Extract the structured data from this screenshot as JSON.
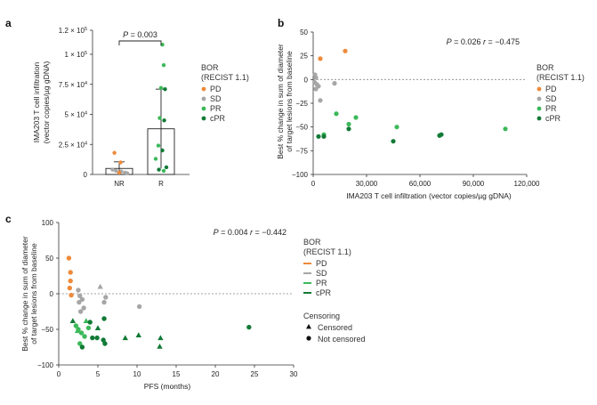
{
  "colors": {
    "PD": "#ee8a3a",
    "SD": "#a6a6a6",
    "PR": "#3cb95a",
    "cPR": "#127a36"
  },
  "chart_data": [
    {
      "panel": "a",
      "type": "bar",
      "categories": [
        "NR",
        "R"
      ],
      "bar_means": [
        5000,
        38000
      ],
      "error_sd": [
        5500,
        33000
      ],
      "ylabel_line1": "IMA203 T cell infiltration",
      "ylabel_line2": "(vector copies/µg gDNA)",
      "ylim": [
        0,
        120000
      ],
      "y_ticks": [
        0,
        25000,
        50000,
        75000,
        100000,
        120000
      ],
      "y_tick_labels": [
        {
          "mant": "0",
          "exp": ""
        },
        {
          "mant": "2.5 × 10",
          "exp": "4"
        },
        {
          "mant": "5 × 10",
          "exp": "4"
        },
        {
          "mant": "7.5 × 10",
          "exp": "4"
        },
        {
          "mant": "1 × 10",
          "exp": "5"
        },
        {
          "mant": "1.2 × 10",
          "exp": "5"
        }
      ],
      "stat": "P = 0.003",
      "legend_title": [
        "BOR",
        "(RECIST 1.1)"
      ],
      "legend": [
        "PD",
        "SD",
        "PR",
        "cPR"
      ],
      "points": [
        {
          "g": "NR",
          "x_off": -0.18,
          "y": 18000,
          "bor": "PD"
        },
        {
          "g": "NR",
          "x_off": 0.05,
          "y": 10000,
          "bor": "PD"
        },
        {
          "g": "NR",
          "x_off": -0.25,
          "y": 4000,
          "bor": "SD"
        },
        {
          "g": "NR",
          "x_off": -0.12,
          "y": 3000,
          "bor": "SD"
        },
        {
          "g": "NR",
          "x_off": 0.08,
          "y": 2500,
          "bor": "SD"
        },
        {
          "g": "NR",
          "x_off": 0.22,
          "y": 1500,
          "bor": "SD"
        },
        {
          "g": "NR",
          "x_off": 0.3,
          "y": 1000,
          "bor": "SD"
        },
        {
          "g": "NR",
          "x_off": 0.0,
          "y": 1500,
          "bor": "PD"
        },
        {
          "g": "R",
          "x_off": 0.05,
          "y": 108000,
          "bor": "PR"
        },
        {
          "g": "R",
          "x_off": 0.1,
          "y": 91000,
          "bor": "PR"
        },
        {
          "g": "R",
          "x_off": 0.0,
          "y": 72000,
          "bor": "PR"
        },
        {
          "g": "R",
          "x_off": 0.15,
          "y": 71000,
          "bor": "cPR"
        },
        {
          "g": "R",
          "x_off": -0.05,
          "y": 47000,
          "bor": "PR"
        },
        {
          "g": "R",
          "x_off": 0.12,
          "y": 45000,
          "bor": "cPR"
        },
        {
          "g": "R",
          "x_off": -0.1,
          "y": 24000,
          "bor": "PR"
        },
        {
          "g": "R",
          "x_off": 0.05,
          "y": 20000,
          "bor": "cPR"
        },
        {
          "g": "R",
          "x_off": -0.2,
          "y": 13000,
          "bor": "PR"
        },
        {
          "g": "R",
          "x_off": 0.2,
          "y": 6000,
          "bor": "cPR"
        },
        {
          "g": "R",
          "x_off": -0.08,
          "y": 4000,
          "bor": "cPR"
        },
        {
          "g": "R",
          "x_off": 0.1,
          "y": 3000,
          "bor": "PR"
        }
      ]
    },
    {
      "panel": "b",
      "type": "scatter",
      "xlabel": "IMA203 T cell infiltration (vector copies/µg gDNA)",
      "ylabel_line1": "Best % change in sum of diameter",
      "ylabel_line2": "of target lesions from baseline",
      "xlim": [
        0,
        120000
      ],
      "ylim": [
        -100,
        50
      ],
      "x_ticks": [
        0,
        30000,
        60000,
        90000,
        120000
      ],
      "x_tick_labels": [
        "0",
        "30,000",
        "60,000",
        "90,000",
        "120,000"
      ],
      "y_ticks": [
        -100,
        -75,
        -50,
        -25,
        0,
        25,
        50
      ],
      "stat": "P = 0.026  r = −0.475",
      "legend_title": [
        "BOR",
        "(RECIST 1.1)"
      ],
      "legend": [
        "PD",
        "SD",
        "PR",
        "cPR"
      ],
      "points": [
        {
          "x": 4000,
          "y": 22,
          "bor": "PD"
        },
        {
          "x": 18000,
          "y": 30,
          "bor": "PD"
        },
        {
          "x": 1000,
          "y": 5,
          "bor": "SD"
        },
        {
          "x": 1500,
          "y": 2,
          "bor": "SD"
        },
        {
          "x": 800,
          "y": -3,
          "bor": "SD"
        },
        {
          "x": 2000,
          "y": -5,
          "bor": "SD"
        },
        {
          "x": 3000,
          "y": -7,
          "bor": "SD"
        },
        {
          "x": 12000,
          "y": -4,
          "bor": "SD"
        },
        {
          "x": 4000,
          "y": -22,
          "bor": "SD"
        },
        {
          "x": 1500,
          "y": -10,
          "bor": "SD"
        },
        {
          "x": 108000,
          "y": -52,
          "bor": "PR"
        },
        {
          "x": 47000,
          "y": -50,
          "bor": "PR"
        },
        {
          "x": 24000,
          "y": -40,
          "bor": "PR"
        },
        {
          "x": 13000,
          "y": -36,
          "bor": "PR"
        },
        {
          "x": 20000,
          "y": -47,
          "bor": "PR"
        },
        {
          "x": 6000,
          "y": -58,
          "bor": "PR"
        },
        {
          "x": 72000,
          "y": -58,
          "bor": "cPR"
        },
        {
          "x": 71000,
          "y": -59,
          "bor": "cPR"
        },
        {
          "x": 45000,
          "y": -65,
          "bor": "cPR"
        },
        {
          "x": 20000,
          "y": -52,
          "bor": "cPR"
        },
        {
          "x": 3000,
          "y": -60,
          "bor": "cPR"
        },
        {
          "x": 6000,
          "y": -60,
          "bor": "cPR"
        }
      ]
    },
    {
      "panel": "c",
      "type": "scatter",
      "xlabel": "PFS (months)",
      "ylabel_line1": "Best % change in sum of diameter",
      "ylabel_line2": "of target lesions from baseline",
      "xlim": [
        0,
        30
      ],
      "ylim": [
        -100,
        100
      ],
      "x_ticks": [
        0,
        5,
        10,
        15,
        20,
        25,
        30
      ],
      "y_ticks": [
        -100,
        -50,
        0,
        50,
        100
      ],
      "stat": "P = 0.004  r = −0.442",
      "legend_title": [
        "BOR",
        "(RECIST 1.1)"
      ],
      "legend": [
        "PD",
        "SD",
        "PR",
        "cPR"
      ],
      "censor_title": "Censoring",
      "censor_legend": [
        "Censored",
        "Not censored"
      ],
      "points": [
        {
          "x": 1.3,
          "y": 50,
          "bor": "PD",
          "c": false
        },
        {
          "x": 1.5,
          "y": 30,
          "bor": "PD",
          "c": false
        },
        {
          "x": 1.5,
          "y": 18,
          "bor": "PD",
          "c": false
        },
        {
          "x": 1.4,
          "y": 8,
          "bor": "PD",
          "c": false
        },
        {
          "x": 1.6,
          "y": -2,
          "bor": "PD",
          "c": false
        },
        {
          "x": 2.5,
          "y": 5,
          "bor": "SD",
          "c": false
        },
        {
          "x": 2.7,
          "y": -3,
          "bor": "SD",
          "c": false
        },
        {
          "x": 3.0,
          "y": -8,
          "bor": "SD",
          "c": false
        },
        {
          "x": 2.6,
          "y": -12,
          "bor": "SD",
          "c": false
        },
        {
          "x": 3.2,
          "y": -20,
          "bor": "SD",
          "c": false
        },
        {
          "x": 2.8,
          "y": -25,
          "bor": "SD",
          "c": false
        },
        {
          "x": 5.8,
          "y": -12,
          "bor": "SD",
          "c": false
        },
        {
          "x": 6.0,
          "y": -5,
          "bor": "SD",
          "c": false
        },
        {
          "x": 10.3,
          "y": -18,
          "bor": "SD",
          "c": false
        },
        {
          "x": 5.3,
          "y": 10,
          "bor": "SD",
          "c": true
        },
        {
          "x": 2.2,
          "y": -45,
          "bor": "PR",
          "c": false
        },
        {
          "x": 2.5,
          "y": -50,
          "bor": "PR",
          "c": false
        },
        {
          "x": 2.9,
          "y": -55,
          "bor": "PR",
          "c": false
        },
        {
          "x": 3.3,
          "y": -60,
          "bor": "PR",
          "c": false
        },
        {
          "x": 2.7,
          "y": -70,
          "bor": "PR",
          "c": false
        },
        {
          "x": 3.8,
          "y": -48,
          "bor": "PR",
          "c": false
        },
        {
          "x": 2.4,
          "y": -52,
          "bor": "PR",
          "c": true
        },
        {
          "x": 3.5,
          "y": -38,
          "bor": "PR",
          "c": true
        },
        {
          "x": 1.8,
          "y": -38,
          "bor": "cPR",
          "c": true
        },
        {
          "x": 3.0,
          "y": -75,
          "bor": "cPR",
          "c": false
        },
        {
          "x": 4.0,
          "y": -40,
          "bor": "cPR",
          "c": false
        },
        {
          "x": 4.3,
          "y": -62,
          "bor": "cPR",
          "c": false
        },
        {
          "x": 4.9,
          "y": -62,
          "bor": "cPR",
          "c": false
        },
        {
          "x": 5.7,
          "y": -65,
          "bor": "cPR",
          "c": false
        },
        {
          "x": 5.9,
          "y": -70,
          "bor": "cPR",
          "c": false
        },
        {
          "x": 5.8,
          "y": -35,
          "bor": "cPR",
          "c": false
        },
        {
          "x": 5.0,
          "y": -48,
          "bor": "cPR",
          "c": true
        },
        {
          "x": 8.5,
          "y": -62,
          "bor": "cPR",
          "c": true
        },
        {
          "x": 10.2,
          "y": -58,
          "bor": "cPR",
          "c": true
        },
        {
          "x": 13.0,
          "y": -62,
          "bor": "cPR",
          "c": true
        },
        {
          "x": 12.9,
          "y": -74,
          "bor": "cPR",
          "c": true
        },
        {
          "x": 24.3,
          "y": -47,
          "bor": "cPR",
          "c": false
        }
      ]
    }
  ]
}
